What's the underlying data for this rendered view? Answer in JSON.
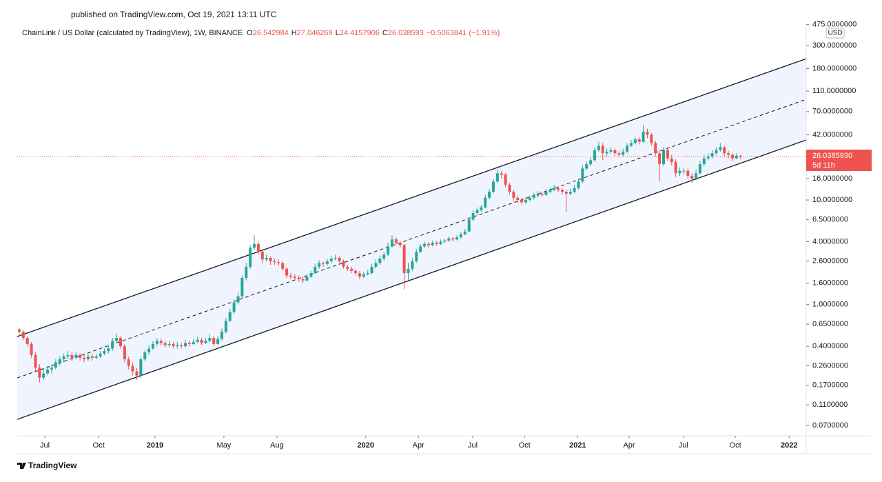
{
  "header": {
    "published": "published on TradingView.com, Oct 19, 2021 13:11 UTC",
    "brand": "TradingView"
  },
  "chart_data": {
    "type": "candlestick",
    "title": "ChainLink / US Dollar (calculated by TradingView), 1W, BINANCE",
    "ohlc_names": [
      "O",
      "H",
      "L",
      "C"
    ],
    "change_label": "−0.5063841 (−1.91%)",
    "currency": "USD",
    "countdown": "5d 11h",
    "last_label": "26.0385930",
    "log_scale": true,
    "up_color": "#26a69a",
    "down_color": "#ef5350",
    "channel_color": "#2962ff",
    "xlim": [
      -0.5,
      194.2
    ],
    "ylim": [
      0.0557,
      480
    ],
    "xticks": [
      {
        "value": 6.3,
        "label": "Jul"
      },
      {
        "value": 19.6,
        "label": "Oct"
      },
      {
        "value": 33.5,
        "label": "2019"
      },
      {
        "value": 50.5,
        "label": "May"
      },
      {
        "value": 63.6,
        "label": "Aug"
      },
      {
        "value": 85.5,
        "label": "2020"
      },
      {
        "value": 98.5,
        "label": "Apr"
      },
      {
        "value": 111.9,
        "label": "Jul"
      },
      {
        "value": 124.7,
        "label": "Oct"
      },
      {
        "value": 137.8,
        "label": "2021"
      },
      {
        "value": 150.5,
        "label": "Apr"
      },
      {
        "value": 163.9,
        "label": "Jul"
      },
      {
        "value": 176.7,
        "label": "Oct"
      },
      {
        "value": 190,
        "label": "2022"
      }
    ],
    "yticks": [
      {
        "value": 475,
        "label": "475.0000000"
      },
      {
        "value": 300,
        "label": "300.0000000"
      },
      {
        "value": 180,
        "label": "180.0000000"
      },
      {
        "value": 110,
        "label": "110.0000000"
      },
      {
        "value": 70,
        "label": "70.0000000"
      },
      {
        "value": 42,
        "label": "42.0000000"
      },
      {
        "value": 16,
        "label": "16.0000000"
      },
      {
        "value": 10,
        "label": "10.0000000"
      },
      {
        "value": 6.5,
        "label": "6.5000000"
      },
      {
        "value": 4,
        "label": "4.0000000"
      },
      {
        "value": 2.6,
        "label": "2.6000000"
      },
      {
        "value": 1.6,
        "label": "1.6000000"
      },
      {
        "value": 1,
        "label": "1.0000000"
      },
      {
        "value": 0.65,
        "label": "0.6500000"
      },
      {
        "value": 0.4,
        "label": "0.4000000"
      },
      {
        "value": 0.26,
        "label": "0.2600000"
      },
      {
        "value": 0.17,
        "label": "0.1700000"
      },
      {
        "value": 0.11,
        "label": "0.1100000"
      },
      {
        "value": 0.07,
        "label": "0.0700000"
      }
    ],
    "channel": {
      "x": [
        -0.5,
        194.2
      ],
      "upper": [
        0.495,
        224
      ],
      "middle": [
        0.199,
        91.7
      ],
      "lower": [
        0.08,
        37.5
      ]
    },
    "candles": [
      [
        0.58,
        0.6,
        0.52,
        0.55
      ],
      [
        0.55,
        0.57,
        0.46,
        0.48
      ],
      [
        0.48,
        0.5,
        0.4,
        0.42
      ],
      [
        0.42,
        0.44,
        0.31,
        0.33
      ],
      [
        0.33,
        0.35,
        0.23,
        0.25
      ],
      [
        0.25,
        0.27,
        0.18,
        0.2
      ],
      [
        0.2,
        0.24,
        0.19,
        0.22
      ],
      [
        0.22,
        0.26,
        0.21,
        0.24
      ],
      [
        0.24,
        0.27,
        0.22,
        0.25
      ],
      [
        0.25,
        0.3,
        0.24,
        0.28
      ],
      [
        0.28,
        0.32,
        0.26,
        0.3
      ],
      [
        0.3,
        0.34,
        0.28,
        0.32
      ],
      [
        0.32,
        0.36,
        0.3,
        0.33
      ],
      [
        0.33,
        0.35,
        0.29,
        0.31
      ],
      [
        0.31,
        0.35,
        0.3,
        0.33
      ],
      [
        0.33,
        0.34,
        0.29,
        0.31
      ],
      [
        0.31,
        0.33,
        0.28,
        0.3
      ],
      [
        0.3,
        0.34,
        0.29,
        0.32
      ],
      [
        0.32,
        0.34,
        0.29,
        0.31
      ],
      [
        0.31,
        0.34,
        0.3,
        0.32
      ],
      [
        0.32,
        0.36,
        0.31,
        0.34
      ],
      [
        0.34,
        0.38,
        0.33,
        0.36
      ],
      [
        0.36,
        0.41,
        0.34,
        0.38
      ],
      [
        0.38,
        0.48,
        0.36,
        0.45
      ],
      [
        0.45,
        0.53,
        0.43,
        0.48
      ],
      [
        0.48,
        0.5,
        0.38,
        0.4
      ],
      [
        0.4,
        0.42,
        0.28,
        0.3
      ],
      [
        0.3,
        0.32,
        0.24,
        0.26
      ],
      [
        0.26,
        0.28,
        0.21,
        0.23
      ],
      [
        0.23,
        0.25,
        0.19,
        0.21
      ],
      [
        0.21,
        0.32,
        0.2,
        0.3
      ],
      [
        0.3,
        0.37,
        0.29,
        0.35
      ],
      [
        0.35,
        0.41,
        0.33,
        0.38
      ],
      [
        0.38,
        0.45,
        0.37,
        0.42
      ],
      [
        0.42,
        0.48,
        0.4,
        0.45
      ],
      [
        0.45,
        0.47,
        0.41,
        0.43
      ],
      [
        0.43,
        0.45,
        0.39,
        0.41
      ],
      [
        0.41,
        0.45,
        0.39,
        0.42
      ],
      [
        0.42,
        0.44,
        0.38,
        0.4
      ],
      [
        0.4,
        0.44,
        0.38,
        0.41
      ],
      [
        0.41,
        0.43,
        0.38,
        0.4
      ],
      [
        0.4,
        0.46,
        0.39,
        0.43
      ],
      [
        0.43,
        0.45,
        0.4,
        0.42
      ],
      [
        0.42,
        0.47,
        0.41,
        0.44
      ],
      [
        0.44,
        0.49,
        0.43,
        0.46
      ],
      [
        0.46,
        0.48,
        0.41,
        0.43
      ],
      [
        0.43,
        0.48,
        0.42,
        0.45
      ],
      [
        0.45,
        0.52,
        0.44,
        0.48
      ],
      [
        0.48,
        0.5,
        0.4,
        0.42
      ],
      [
        0.42,
        0.5,
        0.41,
        0.47
      ],
      [
        0.47,
        0.59,
        0.45,
        0.55
      ],
      [
        0.55,
        0.75,
        0.53,
        0.7
      ],
      [
        0.7,
        0.91,
        0.68,
        0.85
      ],
      [
        0.85,
        1.12,
        0.82,
        1.05
      ],
      [
        1.05,
        1.3,
        1.0,
        1.2
      ],
      [
        1.2,
        1.9,
        1.15,
        1.8
      ],
      [
        1.8,
        2.5,
        1.7,
        2.3
      ],
      [
        2.3,
        3.7,
        2.2,
        3.5
      ],
      [
        3.5,
        4.6,
        3.3,
        3.8
      ],
      [
        3.8,
        4.0,
        3.0,
        3.2
      ],
      [
        3.2,
        3.4,
        2.5,
        2.7
      ],
      [
        2.7,
        3.0,
        2.6,
        2.8
      ],
      [
        2.8,
        2.9,
        2.4,
        2.6
      ],
      [
        2.6,
        2.75,
        2.4,
        2.55
      ],
      [
        2.55,
        2.7,
        2.35,
        2.5
      ],
      [
        2.5,
        2.6,
        2.1,
        2.2
      ],
      [
        2.2,
        2.3,
        1.8,
        1.9
      ],
      [
        1.9,
        2.0,
        1.75,
        1.85
      ],
      [
        1.85,
        1.95,
        1.7,
        1.8
      ],
      [
        1.8,
        1.9,
        1.65,
        1.75
      ],
      [
        1.75,
        1.85,
        1.6,
        1.7
      ],
      [
        1.7,
        1.95,
        1.65,
        1.85
      ],
      [
        1.85,
        2.1,
        1.8,
        2.0
      ],
      [
        2.0,
        2.45,
        1.95,
        2.3
      ],
      [
        2.3,
        2.65,
        2.2,
        2.5
      ],
      [
        2.5,
        2.6,
        2.3,
        2.45
      ],
      [
        2.45,
        2.75,
        2.35,
        2.6
      ],
      [
        2.6,
        2.9,
        2.5,
        2.75
      ],
      [
        2.75,
        3.0,
        2.65,
        2.8
      ],
      [
        2.8,
        2.9,
        2.5,
        2.6
      ],
      [
        2.6,
        2.7,
        2.2,
        2.3
      ],
      [
        2.3,
        2.4,
        2.1,
        2.2
      ],
      [
        2.2,
        2.3,
        2.0,
        2.1
      ],
      [
        2.1,
        2.2,
        1.9,
        2.0
      ],
      [
        2.0,
        2.1,
        1.75,
        1.85
      ],
      [
        1.85,
        2.05,
        1.8,
        1.95
      ],
      [
        1.95,
        2.15,
        1.9,
        2.0
      ],
      [
        2.0,
        2.45,
        1.95,
        2.3
      ],
      [
        2.3,
        2.7,
        2.2,
        2.5
      ],
      [
        2.5,
        2.95,
        2.4,
        2.75
      ],
      [
        2.75,
        3.2,
        2.65,
        3.0
      ],
      [
        3.0,
        3.9,
        2.9,
        3.6
      ],
      [
        3.6,
        4.6,
        3.5,
        4.2
      ],
      [
        4.2,
        4.4,
        3.7,
        3.9
      ],
      [
        3.9,
        4.1,
        3.5,
        3.7
      ],
      [
        3.7,
        3.8,
        1.4,
        2.0
      ],
      [
        2.0,
        2.5,
        1.7,
        2.2
      ],
      [
        2.2,
        2.8,
        2.1,
        2.6
      ],
      [
        2.6,
        3.4,
        2.5,
        3.2
      ],
      [
        3.2,
        3.8,
        3.1,
        3.6
      ],
      [
        3.6,
        4.0,
        3.5,
        3.8
      ],
      [
        3.8,
        3.95,
        3.5,
        3.7
      ],
      [
        3.7,
        4.1,
        3.6,
        3.9
      ],
      [
        3.9,
        4.05,
        3.65,
        3.8
      ],
      [
        3.8,
        4.2,
        3.7,
        4.0
      ],
      [
        4.0,
        4.3,
        3.85,
        4.1
      ],
      [
        4.1,
        4.5,
        4.0,
        4.3
      ],
      [
        4.3,
        4.45,
        4.0,
        4.2
      ],
      [
        4.2,
        4.6,
        4.1,
        4.4
      ],
      [
        4.4,
        4.95,
        4.3,
        4.7
      ],
      [
        4.7,
        5.3,
        4.6,
        5.0
      ],
      [
        5.0,
        6.9,
        4.9,
        6.5
      ],
      [
        6.5,
        8.0,
        6.3,
        7.5
      ],
      [
        7.5,
        8.5,
        7.2,
        8.0
      ],
      [
        8.0,
        9.0,
        7.7,
        8.5
      ],
      [
        8.5,
        11.2,
        8.3,
        10.5
      ],
      [
        10.5,
        12.8,
        10.2,
        12
      ],
      [
        12,
        16,
        11.6,
        15
      ],
      [
        15,
        19.5,
        14.5,
        18
      ],
      [
        18,
        19,
        16,
        17.5
      ],
      [
        17.5,
        18,
        13.2,
        14
      ],
      [
        14,
        14.6,
        11.3,
        12
      ],
      [
        12,
        12.5,
        9.8,
        10.5
      ],
      [
        10.5,
        11,
        9.3,
        10
      ],
      [
        10,
        10.5,
        8.9,
        9.5
      ],
      [
        9.5,
        10.6,
        9.2,
        10
      ],
      [
        10,
        11.1,
        9.7,
        10.5
      ],
      [
        10.5,
        11.7,
        10.1,
        11
      ],
      [
        11,
        12.2,
        10.6,
        11.5
      ],
      [
        11.5,
        12,
        10.6,
        11.2
      ],
      [
        11.2,
        12.8,
        10.9,
        12
      ],
      [
        12,
        13.3,
        11.6,
        12.5
      ],
      [
        12.5,
        14,
        12.1,
        13
      ],
      [
        13,
        13.5,
        11.8,
        12.5
      ],
      [
        12.5,
        13,
        11.3,
        12
      ],
      [
        12,
        12.5,
        7.7,
        11.5
      ],
      [
        11.5,
        12.8,
        11.1,
        12
      ],
      [
        12,
        13.9,
        11.6,
        13
      ],
      [
        13,
        16,
        12.6,
        15
      ],
      [
        15,
        21.5,
        14.5,
        20
      ],
      [
        20,
        23.5,
        19.3,
        22
      ],
      [
        22,
        25.5,
        21.3,
        24
      ],
      [
        24,
        32,
        23.2,
        30
      ],
      [
        30,
        36,
        29,
        33
      ],
      [
        33,
        35,
        24,
        28
      ],
      [
        28,
        31,
        26,
        29
      ],
      [
        29,
        32,
        27.5,
        30
      ],
      [
        30,
        31,
        26,
        28
      ],
      [
        28,
        29.5,
        25.5,
        27
      ],
      [
        27,
        31,
        26,
        29
      ],
      [
        29,
        35,
        28,
        33
      ],
      [
        33,
        37.5,
        32,
        35
      ],
      [
        35,
        40,
        34,
        38
      ],
      [
        38,
        40,
        34,
        36
      ],
      [
        36,
        52,
        35,
        45
      ],
      [
        45,
        48,
        39,
        42
      ],
      [
        42,
        44,
        33,
        35
      ],
      [
        35,
        37,
        26,
        28
      ],
      [
        28,
        30,
        15,
        22
      ],
      [
        22,
        32,
        21,
        30
      ],
      [
        30,
        32,
        23.5,
        25
      ],
      [
        25,
        27,
        21.5,
        23
      ],
      [
        23,
        24.5,
        16.5,
        18
      ],
      [
        18,
        20.5,
        17,
        19
      ],
      [
        19,
        20.5,
        17.5,
        19
      ],
      [
        19,
        20,
        16,
        17
      ],
      [
        17,
        18,
        14.5,
        16
      ],
      [
        16,
        19.5,
        15.5,
        18
      ],
      [
        18,
        23.5,
        17.5,
        22
      ],
      [
        22,
        27,
        21,
        25
      ],
      [
        25,
        28,
        24,
        26
      ],
      [
        26,
        30,
        25,
        28
      ],
      [
        28,
        32,
        27,
        30
      ],
      [
        30,
        35,
        29,
        32
      ],
      [
        32,
        33,
        26,
        28
      ],
      [
        28,
        29.5,
        25,
        27
      ],
      [
        27,
        28,
        23.5,
        25
      ],
      [
        25,
        28,
        24.5,
        26.54
      ],
      [
        26.542984,
        27.046269,
        24.4157906,
        26.038593
      ]
    ]
  }
}
